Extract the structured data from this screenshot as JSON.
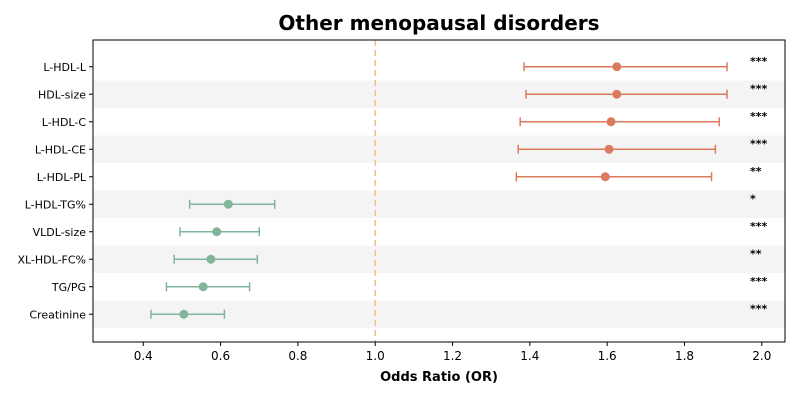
{
  "chart_data": {
    "type": "scatter",
    "subtype": "forest-plot",
    "title": "Other menopausal disorders",
    "xlabel": "Odds Ratio (OR)",
    "ylabel": "",
    "xlim": [
      0.27,
      2.06
    ],
    "xticks": [
      0.4,
      0.6,
      0.8,
      1.0,
      1.2,
      1.4,
      1.6,
      1.8,
      2.0
    ],
    "xtick_labels": [
      "0.4",
      "0.6",
      "0.8",
      "1.0",
      "1.2",
      "1.4",
      "1.6",
      "1.8",
      "2.0"
    ],
    "reference_line": 1.0,
    "reference_line_color": "#f0c477",
    "increase_color": "#dc7a5e",
    "decrease_color": "#80b59b",
    "band_color": "#f4f4f4",
    "grid": false,
    "legend": "none",
    "rows": [
      {
        "label": "L-HDL-L",
        "or": 1.625,
        "lo": 1.385,
        "hi": 1.91,
        "sig": "***",
        "direction": "increase"
      },
      {
        "label": "HDL-size",
        "or": 1.625,
        "lo": 1.39,
        "hi": 1.91,
        "sig": "***",
        "direction": "increase"
      },
      {
        "label": "L-HDL-C",
        "or": 1.61,
        "lo": 1.375,
        "hi": 1.89,
        "sig": "***",
        "direction": "increase"
      },
      {
        "label": "L-HDL-CE",
        "or": 1.605,
        "lo": 1.37,
        "hi": 1.88,
        "sig": "***",
        "direction": "increase"
      },
      {
        "label": "L-HDL-PL",
        "or": 1.595,
        "lo": 1.365,
        "hi": 1.87,
        "sig": "**",
        "direction": "increase"
      },
      {
        "label": "L-HDL-TG%",
        "or": 0.62,
        "lo": 0.52,
        "hi": 0.74,
        "sig": "*",
        "direction": "decrease"
      },
      {
        "label": "VLDL-size",
        "or": 0.59,
        "lo": 0.495,
        "hi": 0.7,
        "sig": "***",
        "direction": "decrease"
      },
      {
        "label": "XL-HDL-FC%",
        "or": 0.575,
        "lo": 0.48,
        "hi": 0.695,
        "sig": "**",
        "direction": "decrease"
      },
      {
        "label": "TG/PG",
        "or": 0.555,
        "lo": 0.46,
        "hi": 0.675,
        "sig": "***",
        "direction": "decrease"
      },
      {
        "label": "Creatinine",
        "or": 0.505,
        "lo": 0.42,
        "hi": 0.61,
        "sig": "***",
        "direction": "decrease"
      }
    ]
  }
}
